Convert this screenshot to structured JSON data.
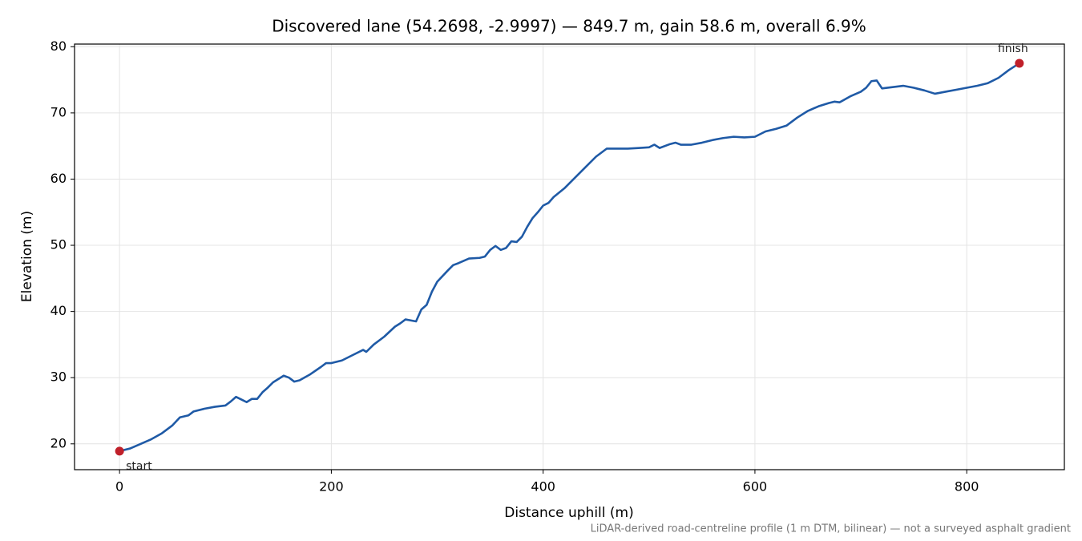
{
  "chart_data": {
    "type": "line",
    "title": "Discovered lane (54.2698, -2.9997) — 849.7 m, gain 58.6 m, overall 6.9%",
    "xlabel": "Distance uphill (m)",
    "ylabel": "Elevation (m)",
    "footnote": "LiDAR-derived road-centreline profile (1 m DTM, bilinear) — not a surveyed asphalt gradient",
    "color": "#1f5aa6",
    "marker_color": "#c0202a",
    "grid": true,
    "xlim": [
      -42.5,
      892.2
    ],
    "ylim": [
      16.1,
      80.4
    ],
    "xticks": [
      0,
      200,
      400,
      600,
      800
    ],
    "yticks": [
      20,
      30,
      40,
      50,
      60,
      70,
      80
    ],
    "x": [
      0,
      10,
      20,
      30,
      40,
      50,
      57,
      65,
      70,
      80,
      90,
      100,
      105,
      110,
      115,
      120,
      125,
      130,
      135,
      140,
      145,
      150,
      155,
      160,
      165,
      170,
      180,
      190,
      195,
      200,
      210,
      220,
      230,
      233,
      240,
      250,
      260,
      265,
      270,
      280,
      285,
      290,
      295,
      300,
      310,
      315,
      320,
      330,
      340,
      345,
      350,
      355,
      360,
      365,
      370,
      375,
      380,
      385,
      390,
      395,
      400,
      405,
      410,
      420,
      430,
      440,
      450,
      460,
      470,
      480,
      490,
      500,
      505,
      510,
      520,
      525,
      530,
      540,
      550,
      560,
      570,
      580,
      590,
      600,
      610,
      620,
      630,
      640,
      650,
      660,
      670,
      675,
      680,
      690,
      700,
      705,
      710,
      715,
      720,
      730,
      740,
      750,
      760,
      770,
      780,
      790,
      800,
      810,
      820,
      830,
      840,
      849.7
    ],
    "values": [
      18.9,
      19.3,
      20.0,
      20.7,
      21.6,
      22.8,
      24.0,
      24.3,
      24.9,
      25.3,
      25.6,
      25.8,
      26.4,
      27.1,
      26.7,
      26.3,
      26.8,
      26.8,
      27.8,
      28.5,
      29.3,
      29.8,
      30.3,
      30.0,
      29.4,
      29.6,
      30.5,
      31.6,
      32.2,
      32.2,
      32.6,
      33.4,
      34.2,
      33.9,
      35.0,
      36.2,
      37.7,
      38.2,
      38.8,
      38.5,
      40.3,
      41.0,
      43.0,
      44.5,
      46.2,
      47.0,
      47.3,
      48.0,
      48.1,
      48.3,
      49.3,
      49.9,
      49.3,
      49.6,
      50.6,
      50.5,
      51.3,
      52.8,
      54.1,
      55.0,
      56.0,
      56.4,
      57.3,
      58.6,
      60.2,
      61.8,
      63.4,
      64.6,
      64.6,
      64.6,
      64.7,
      64.8,
      65.2,
      64.7,
      65.3,
      65.5,
      65.2,
      65.2,
      65.5,
      65.9,
      66.2,
      66.4,
      66.3,
      66.4,
      67.2,
      67.6,
      68.1,
      69.3,
      70.3,
      71.0,
      71.5,
      71.7,
      71.6,
      72.5,
      73.2,
      73.8,
      74.8,
      74.9,
      73.7,
      73.9,
      74.1,
      73.8,
      73.4,
      72.9,
      73.2,
      73.5,
      73.8,
      74.1,
      74.5,
      75.3,
      76.5,
      77.5
    ],
    "annotations": [
      {
        "text": "start",
        "x": 0,
        "y": 18.9
      },
      {
        "text": "finish",
        "x": 849.7,
        "y": 77.5
      }
    ]
  }
}
